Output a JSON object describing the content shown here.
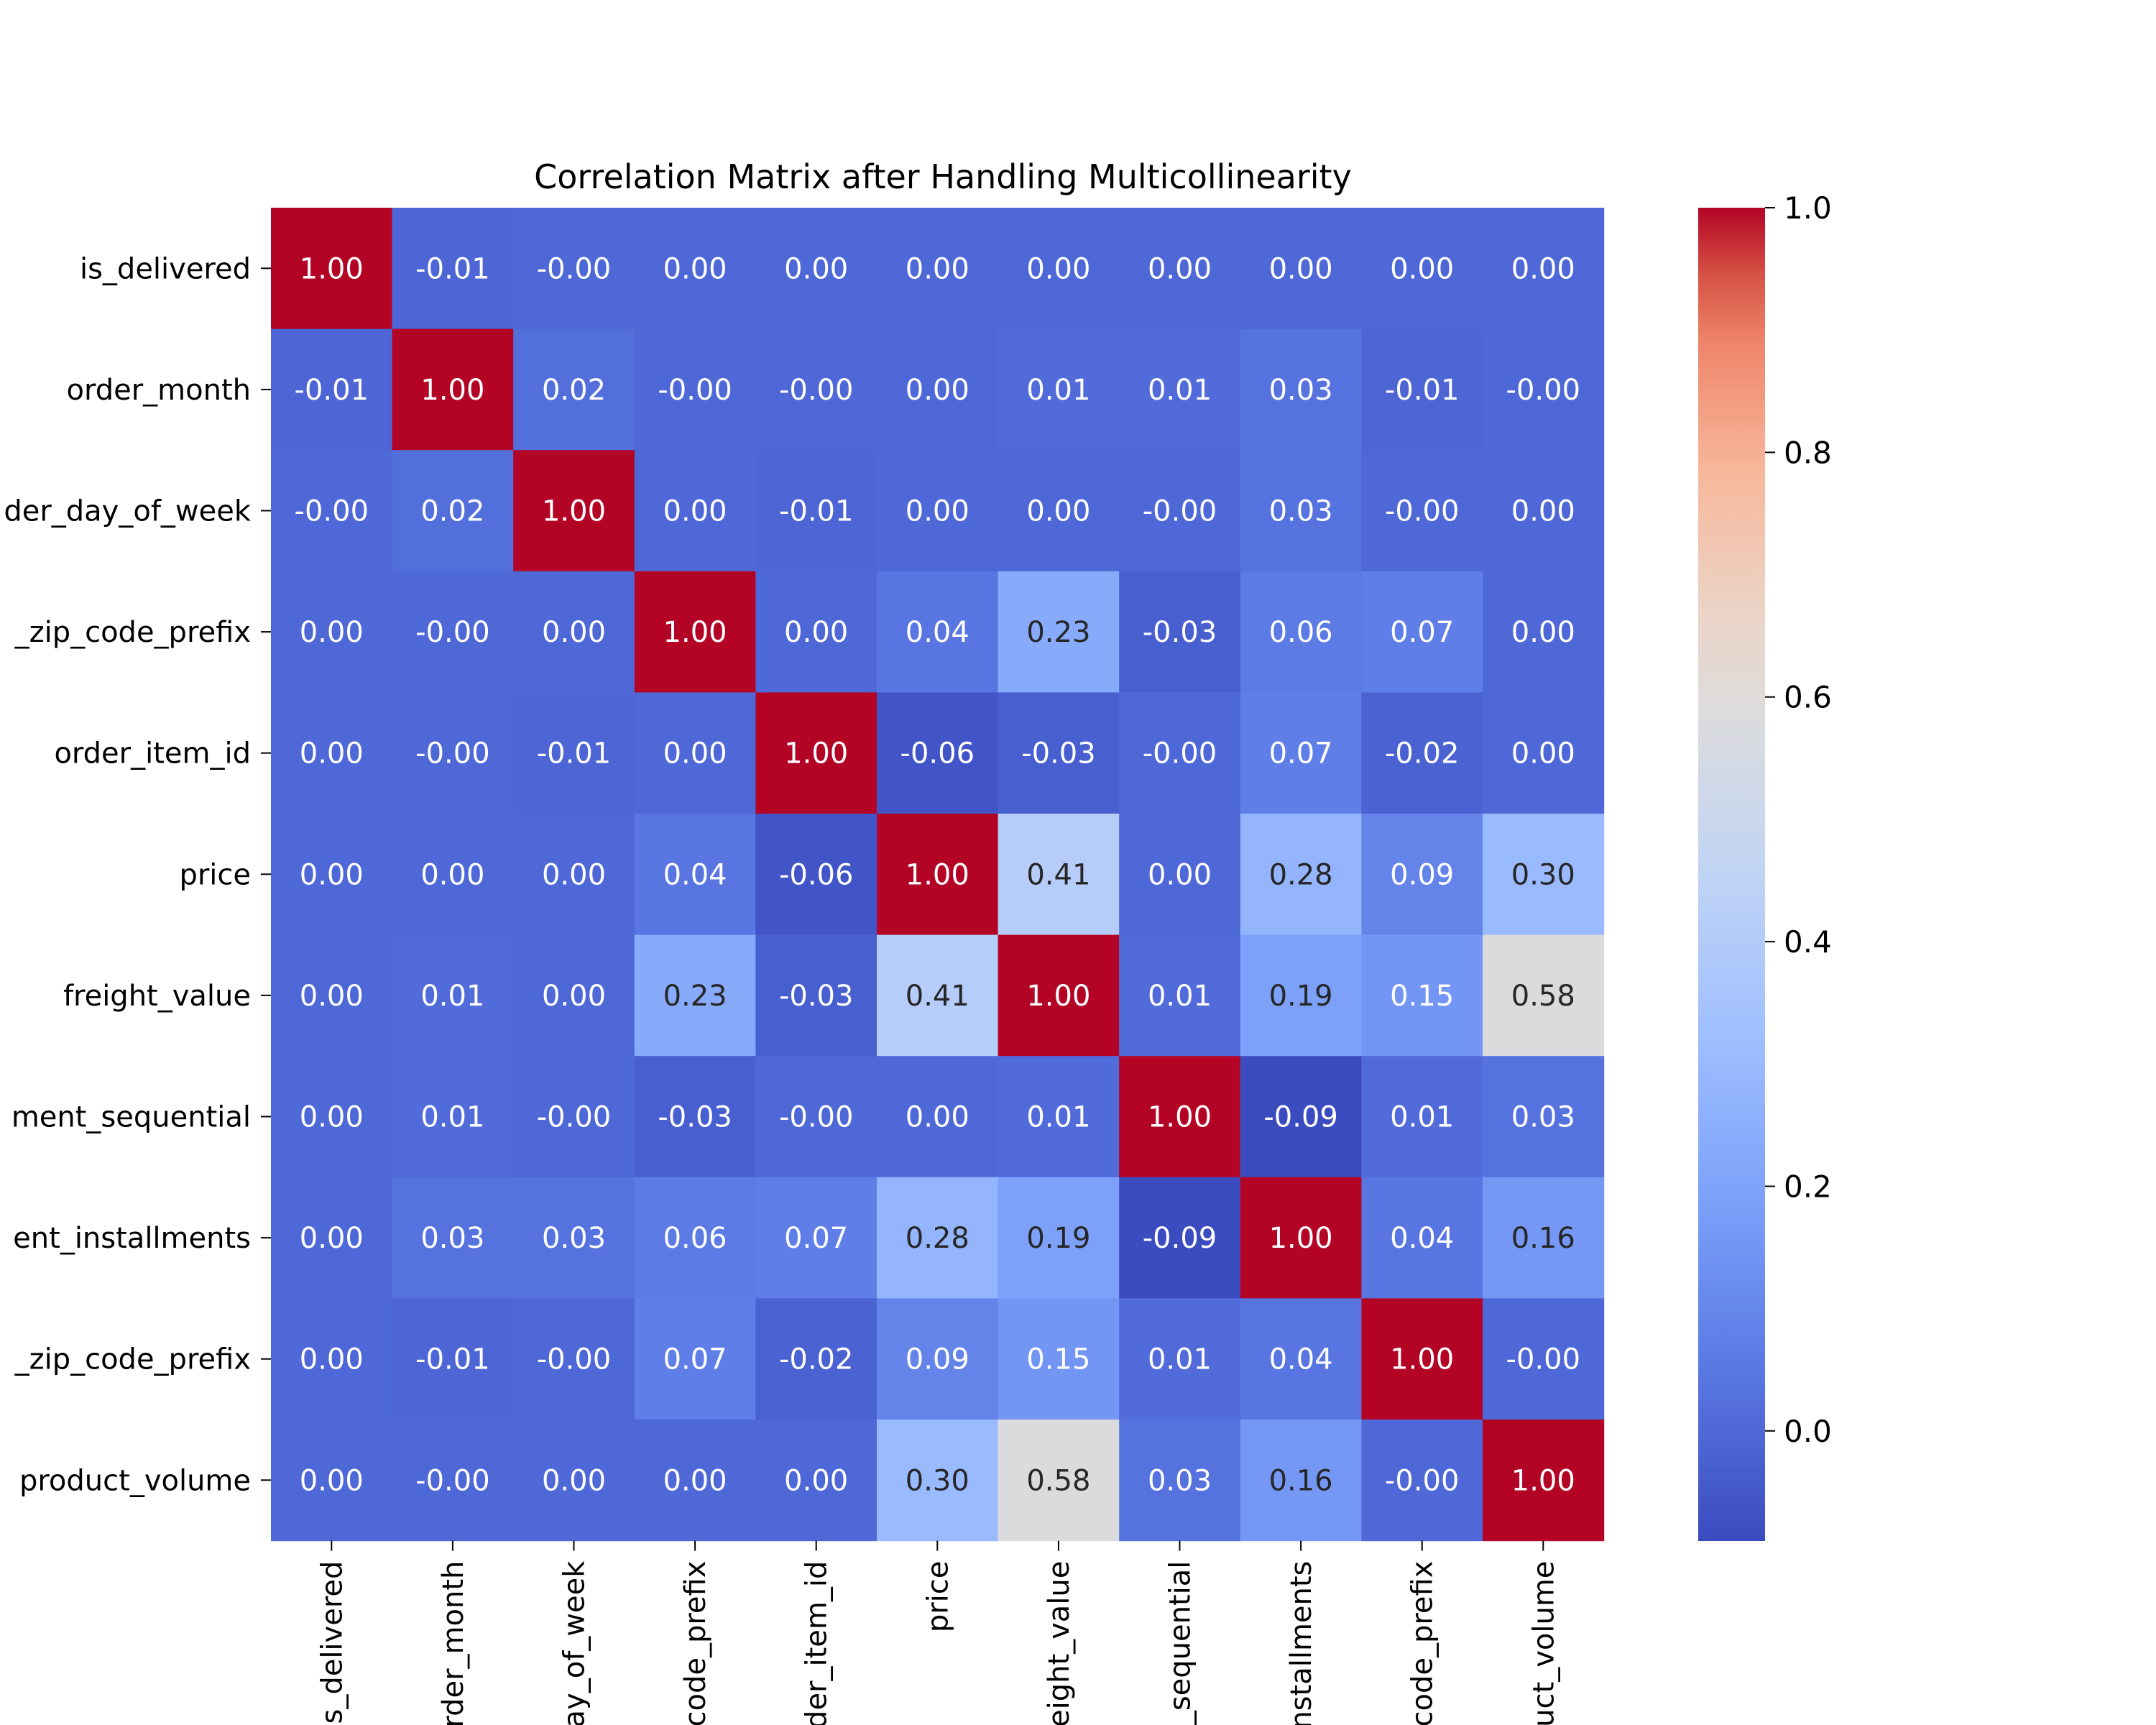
{
  "chart_data": {
    "type": "heatmap",
    "title": "Correlation Matrix after Handling Multicollinearity",
    "row_labels": [
      "is_delivered",
      "order_month",
      "der_day_of_week",
      "_zip_code_prefix",
      "order_item_id",
      "price",
      "freight_value",
      "ment_sequential",
      "ent_installments",
      "_zip_code_prefix",
      "product_volume"
    ],
    "column_labels": [
      "s_delivered",
      "rder_month",
      "ay_of_week",
      "code_prefix",
      "der_item_id",
      "price",
      "eight_value",
      "_sequential",
      "nstallments",
      "code_prefix",
      "uct_volume"
    ],
    "values": [
      [
        1.0,
        -0.01,
        -0.0,
        0.0,
        0.0,
        0.0,
        0.0,
        0.0,
        0.0,
        0.0,
        0.0
      ],
      [
        -0.01,
        1.0,
        0.02,
        -0.0,
        -0.0,
        0.0,
        0.01,
        0.01,
        0.03,
        -0.01,
        -0.0
      ],
      [
        -0.0,
        0.02,
        1.0,
        0.0,
        -0.01,
        0.0,
        0.0,
        -0.0,
        0.03,
        -0.0,
        0.0
      ],
      [
        0.0,
        -0.0,
        0.0,
        1.0,
        0.0,
        0.04,
        0.23,
        -0.03,
        0.06,
        0.07,
        0.0
      ],
      [
        0.0,
        -0.0,
        -0.01,
        0.0,
        1.0,
        -0.06,
        -0.03,
        -0.0,
        0.07,
        -0.02,
        0.0
      ],
      [
        0.0,
        0.0,
        0.0,
        0.04,
        -0.06,
        1.0,
        0.41,
        0.0,
        0.28,
        0.09,
        0.3
      ],
      [
        0.0,
        0.01,
        0.0,
        0.23,
        -0.03,
        0.41,
        1.0,
        0.01,
        0.19,
        0.15,
        0.58
      ],
      [
        0.0,
        0.01,
        -0.0,
        -0.03,
        -0.0,
        0.0,
        0.01,
        1.0,
        -0.09,
        0.01,
        0.03
      ],
      [
        0.0,
        0.03,
        0.03,
        0.06,
        0.07,
        0.28,
        0.19,
        -0.09,
        1.0,
        0.04,
        0.16
      ],
      [
        0.0,
        -0.01,
        -0.0,
        0.07,
        -0.02,
        0.09,
        0.15,
        0.01,
        0.04,
        1.0,
        -0.0
      ],
      [
        0.0,
        -0.0,
        0.0,
        0.0,
        0.0,
        0.3,
        0.58,
        0.03,
        0.16,
        -0.0,
        1.0
      ]
    ],
    "cell_labels": [
      [
        "1.00",
        "-0.01",
        "-0.00",
        "0.00",
        "0.00",
        "0.00",
        "0.00",
        "0.00",
        "0.00",
        "0.00",
        "0.00"
      ],
      [
        "-0.01",
        "1.00",
        "0.02",
        "-0.00",
        "-0.00",
        "0.00",
        "0.01",
        "0.01",
        "0.03",
        "-0.01",
        "-0.00"
      ],
      [
        "-0.00",
        "0.02",
        "1.00",
        "0.00",
        "-0.01",
        "0.00",
        "0.00",
        "-0.00",
        "0.03",
        "-0.00",
        "0.00"
      ],
      [
        "0.00",
        "-0.00",
        "0.00",
        "1.00",
        "0.00",
        "0.04",
        "0.23",
        "-0.03",
        "0.06",
        "0.07",
        "0.00"
      ],
      [
        "0.00",
        "-0.00",
        "-0.01",
        "0.00",
        "1.00",
        "-0.06",
        "-0.03",
        "-0.00",
        "0.07",
        "-0.02",
        "0.00"
      ],
      [
        "0.00",
        "0.00",
        "0.00",
        "0.04",
        "-0.06",
        "1.00",
        "0.41",
        "0.00",
        "0.28",
        "0.09",
        "0.30"
      ],
      [
        "0.00",
        "0.01",
        "0.00",
        "0.23",
        "-0.03",
        "0.41",
        "1.00",
        "0.01",
        "0.19",
        "0.15",
        "0.58"
      ],
      [
        "0.00",
        "0.01",
        "-0.00",
        "-0.03",
        "-0.00",
        "0.00",
        "0.01",
        "1.00",
        "-0.09",
        "0.01",
        "0.03"
      ],
      [
        "0.00",
        "0.03",
        "0.03",
        "0.06",
        "0.07",
        "0.28",
        "0.19",
        "-0.09",
        "1.00",
        "0.04",
        "0.16"
      ],
      [
        "0.00",
        "-0.01",
        "-0.00",
        "0.07",
        "-0.02",
        "0.09",
        "0.15",
        "0.01",
        "0.04",
        "1.00",
        "-0.00"
      ],
      [
        "0.00",
        "-0.00",
        "0.00",
        "0.00",
        "0.00",
        "0.30",
        "0.58",
        "0.03",
        "0.16",
        "-0.00",
        "1.00"
      ]
    ],
    "colormap": "coolwarm",
    "colorbar": {
      "range": [
        -0.09,
        1.0
      ],
      "ticks": [
        0.0,
        0.2,
        0.4,
        0.6,
        0.8,
        1.0
      ],
      "tick_labels": [
        "0.0",
        "0.2",
        "0.4",
        "0.6",
        "0.8",
        "1.0"
      ]
    },
    "grid": false
  }
}
